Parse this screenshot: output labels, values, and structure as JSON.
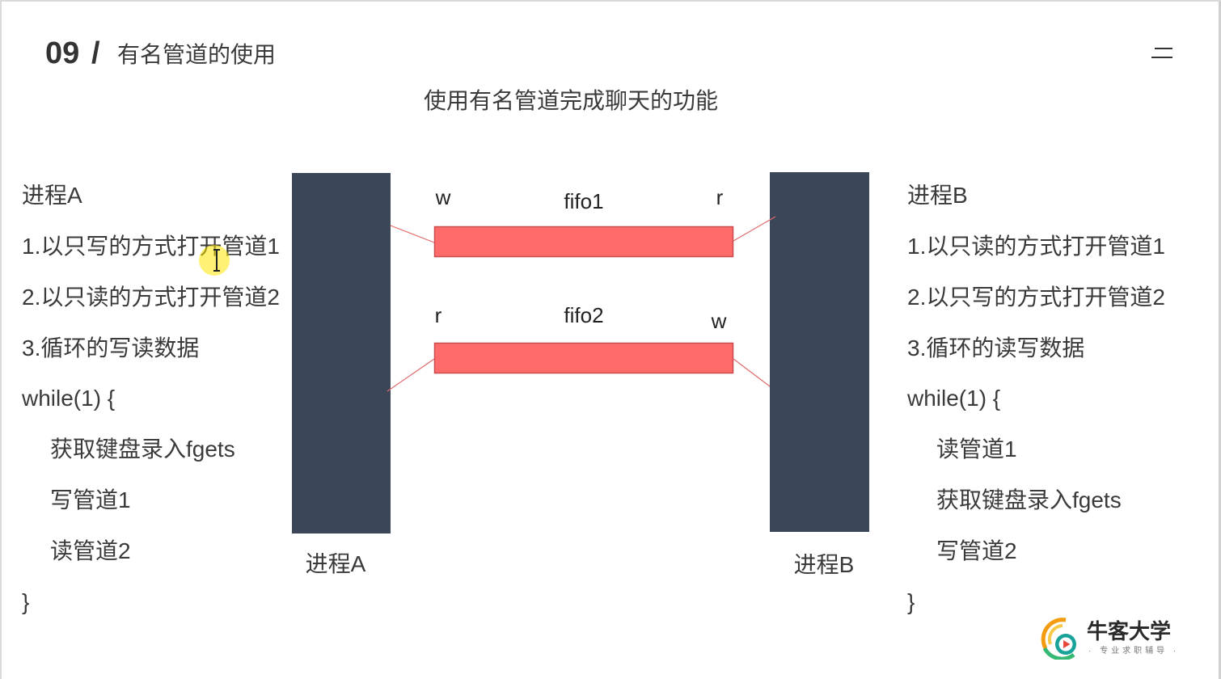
{
  "header": {
    "number": "09",
    "separator": "/",
    "title": "有名管道的使用"
  },
  "subtitle": "使用有名管道完成聊天的功能",
  "process_a": {
    "heading": "进程A",
    "steps": [
      "1.以只写的方式打开管道1",
      "2.以只读的方式打开管道2",
      "3.循环的写读数据"
    ],
    "loop_open": "while(1) {",
    "loop_body": [
      "获取键盘录入fgets",
      "写管道1",
      "读管道2"
    ],
    "loop_close": "}"
  },
  "process_b": {
    "heading": "进程B",
    "steps": [
      "1.以只读的方式打开管道1",
      "2.以只写的方式打开管道2",
      "3.循环的读写数据"
    ],
    "loop_open": "while(1) {",
    "loop_body": [
      "读管道1",
      "获取键盘录入fgets",
      "写管道2"
    ],
    "loop_close": "}"
  },
  "diagram": {
    "block_a_label": "进程A",
    "block_b_label": "进程B",
    "fifo1": {
      "name": "fifo1",
      "left_end": "w",
      "right_end": "r"
    },
    "fifo2": {
      "name": "fifo2",
      "left_end": "r",
      "right_end": "w"
    },
    "colors": {
      "process_block": "#3c4659",
      "pipe_fill": "#ff6b6b",
      "pipe_border": "#c94c4c",
      "connector": "#e06a6a",
      "cursor_highlight": "#ffe600"
    }
  },
  "logo": {
    "name": "牛客大学",
    "tagline": "· 专业求职辅导 ·",
    "icon": "nowcoder-logo-icon"
  },
  "icons": {
    "menu": "menu-icon",
    "cursor": "text-cursor-icon",
    "cursor_highlight": "cursor-highlight"
  }
}
